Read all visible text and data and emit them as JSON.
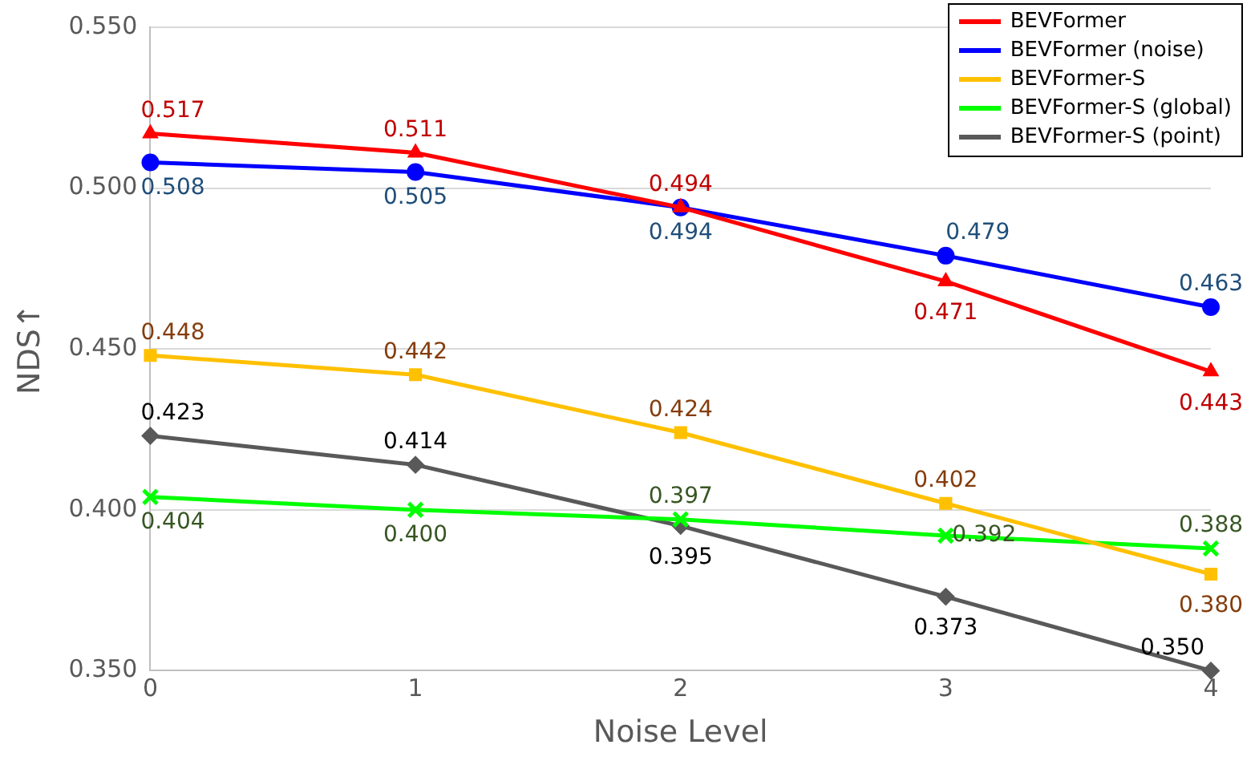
{
  "chart_data": {
    "type": "line",
    "xlabel": "Noise Level",
    "ylabel": "NDS↑",
    "x": [
      0,
      1,
      2,
      3,
      4
    ],
    "xlim": [
      0,
      4
    ],
    "xticks": [
      0,
      1,
      2,
      3,
      4
    ],
    "ylim": [
      0.35,
      0.55
    ],
    "yticks": [
      {
        "value": 0.35,
        "label": "0.350"
      },
      {
        "value": 0.4,
        "label": "0.400"
      },
      {
        "value": 0.45,
        "label": "0.450"
      },
      {
        "value": 0.5,
        "label": "0.500"
      },
      {
        "value": 0.55,
        "label": "0.550"
      }
    ],
    "grid": "y",
    "legend": "top right",
    "line_style": "solid",
    "series": [
      {
        "name": "BEVFormer",
        "color": "#ff0000",
        "marker": "triangle",
        "values": [
          0.517,
          0.511,
          0.494,
          0.471,
          0.443
        ],
        "value_labels": [
          "0.517",
          "0.511",
          "0.494",
          "0.471",
          "0.443"
        ]
      },
      {
        "name": "BEVFormer (noise)",
        "color": "#0000ff",
        "marker": "circle",
        "values": [
          0.508,
          0.505,
          0.494,
          0.479,
          0.463
        ],
        "value_labels": [
          "0.508",
          "0.505",
          "0.494",
          "0.479",
          "0.463"
        ]
      },
      {
        "name": "BEVFormer-S",
        "color": "#ffc000",
        "marker": "square",
        "values": [
          0.448,
          0.442,
          0.424,
          0.402,
          0.38
        ],
        "value_labels": [
          "0.448",
          "0.442",
          "0.424",
          "0.402",
          "0.380"
        ]
      },
      {
        "name": "BEVFormer-S (global)",
        "color": "#00ff00",
        "marker": "cross",
        "values": [
          0.404,
          0.4,
          0.397,
          0.392,
          0.388
        ],
        "value_labels": [
          "0.404",
          "0.400",
          "0.397",
          "0.392",
          "0.388"
        ]
      },
      {
        "name": "BEVFormer-S (point)",
        "color": "#595959",
        "marker": "diamond",
        "values": [
          0.423,
          0.414,
          0.395,
          0.373,
          0.35
        ],
        "value_labels": [
          "0.423",
          "0.414",
          "0.395",
          "0.373",
          "0.350"
        ]
      }
    ]
  }
}
